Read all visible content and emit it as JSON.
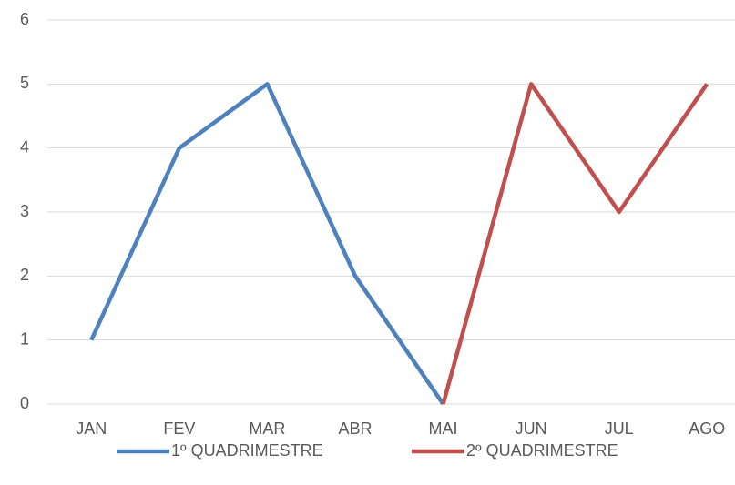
{
  "chart_data": {
    "type": "line",
    "categories": [
      "JAN",
      "FEV",
      "MAR",
      "ABR",
      "MAI",
      "JUN",
      "JUL",
      "AGO"
    ],
    "series": [
      {
        "name": "1º QUADRIMESTRE",
        "color": "#4f81bd",
        "values": [
          1,
          4,
          5,
          2,
          0,
          null,
          null,
          null
        ]
      },
      {
        "name": "2º QUADRIMESTRE",
        "color": "#c0504d",
        "values": [
          null,
          null,
          null,
          null,
          0,
          5,
          3,
          5
        ]
      }
    ],
    "ylim": [
      0,
      6
    ],
    "yticks": [
      0,
      1,
      2,
      3,
      4,
      5,
      6
    ],
    "grid": true,
    "legend": "bottom"
  }
}
